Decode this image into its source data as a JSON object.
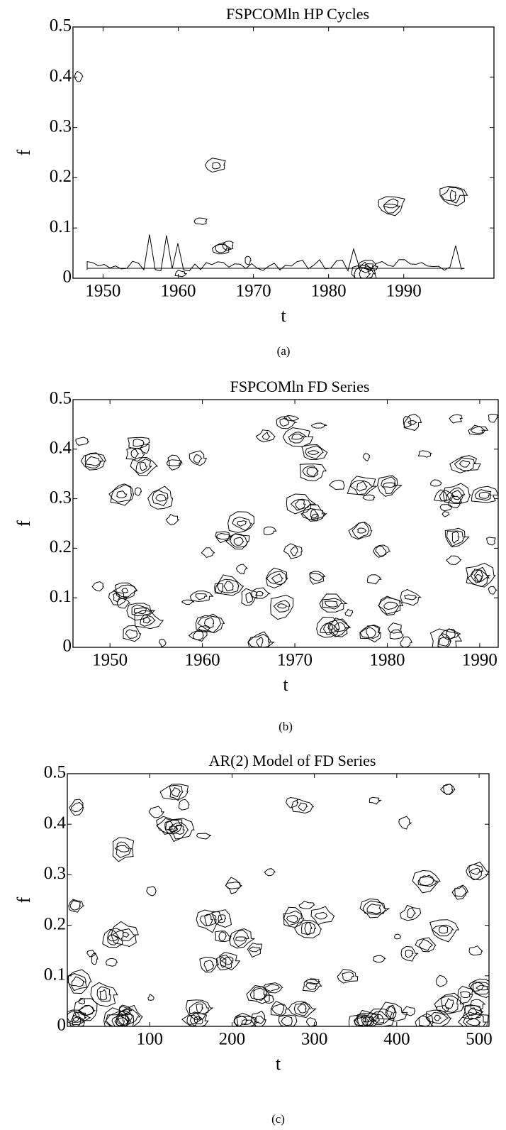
{
  "chart_data": [
    {
      "type": "contour",
      "title": "FSPCOMln HP Cycles",
      "xlabel": "t",
      "ylabel": "f",
      "caption": "(a)",
      "xlim": [
        1946,
        2002
      ],
      "ylim": [
        0,
        0.5
      ],
      "xticks": [
        1950,
        1960,
        1970,
        1980,
        1990
      ],
      "yticks": [
        0,
        0.1,
        0.2,
        0.3,
        0.4,
        0.5
      ],
      "color": "#000000"
    },
    {
      "type": "contour",
      "title": "FSPCOMln FD Series",
      "xlabel": "t",
      "ylabel": "f",
      "caption": "(b)",
      "xlim": [
        1946,
        1992
      ],
      "ylim": [
        0,
        0.5
      ],
      "xticks": [
        1950,
        1960,
        1970,
        1980,
        1990
      ],
      "yticks": [
        0,
        0.1,
        0.2,
        0.3,
        0.4,
        0.5
      ],
      "color": "#000000"
    },
    {
      "type": "contour",
      "title": "AR(2) Model of FD Series",
      "xlabel": "t",
      "ylabel": "f",
      "caption": "(c)",
      "xlim": [
        0,
        512
      ],
      "ylim": [
        0,
        0.5
      ],
      "xticks": [
        100,
        200,
        300,
        400,
        500
      ],
      "yticks": [
        0,
        0.1,
        0.2,
        0.3,
        0.4,
        0.5
      ],
      "color": "#000000"
    }
  ]
}
